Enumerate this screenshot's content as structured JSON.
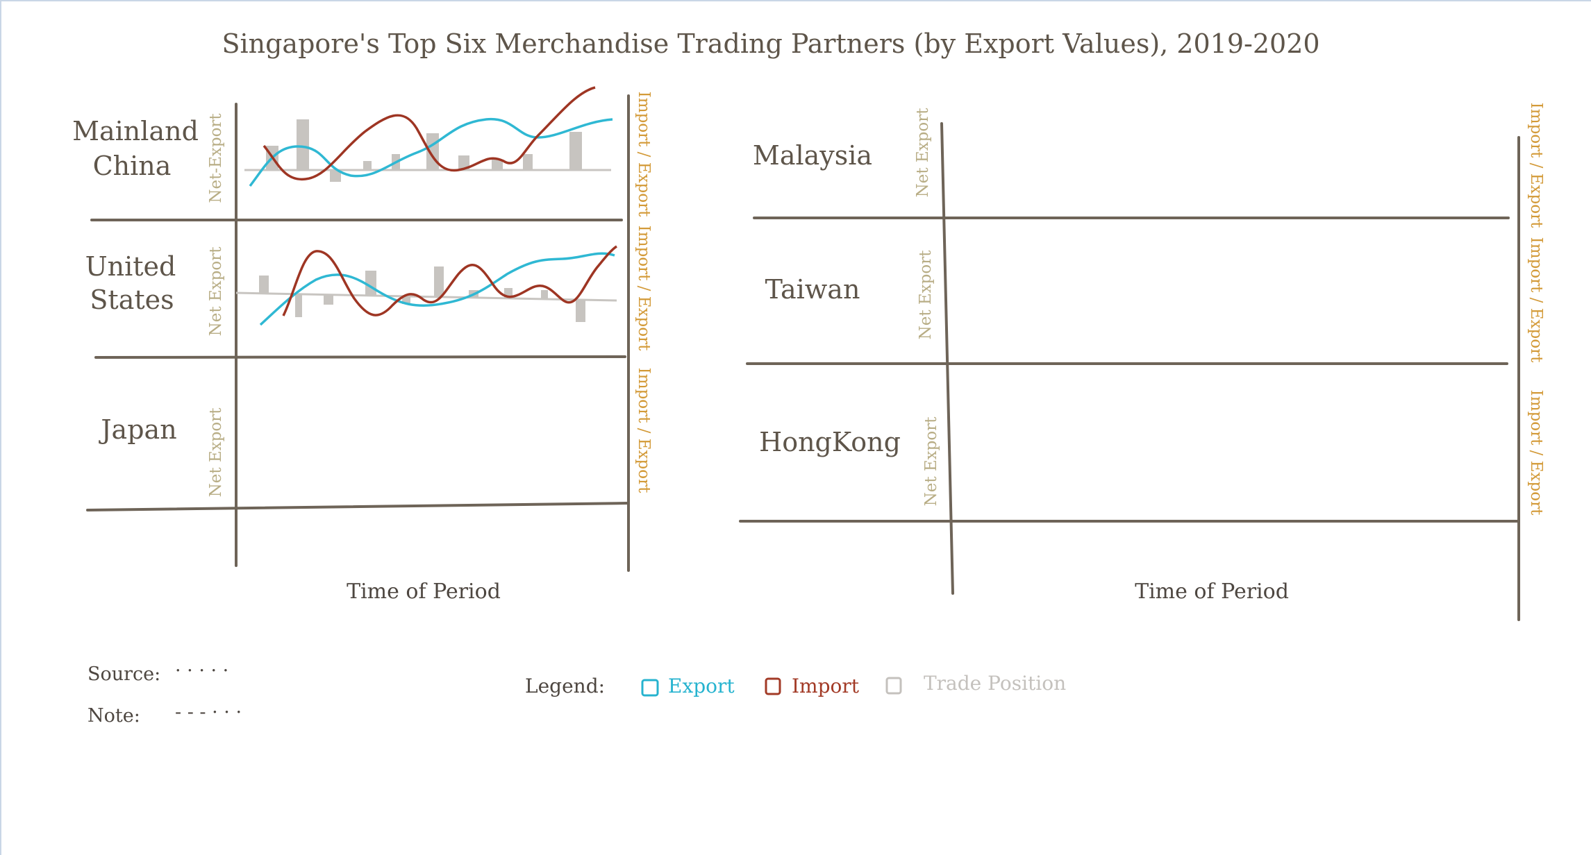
{
  "title": "Singapore's Top Six Merchandise Trading Partners (by Export Values), 2019-2020",
  "left_panel": {
    "regions": [
      {
        "lines": [
          "Mainland",
          "China"
        ],
        "net_label": "Net-Export",
        "right_label": "Import / Export"
      },
      {
        "lines": [
          "United",
          "States"
        ],
        "net_label": "Net Export",
        "right_label": "Import / Export"
      },
      {
        "lines": [
          "Japan"
        ],
        "net_label": "Net Export",
        "right_label": "Import / Export"
      }
    ],
    "x_axis_label": "Time of Period"
  },
  "right_panel": {
    "regions": [
      {
        "lines": [
          "Malaysia"
        ],
        "net_label": "Net Export",
        "right_label": "Import / Export"
      },
      {
        "lines": [
          "Taiwan"
        ],
        "net_label": "Net Export",
        "right_label": "Import / Export"
      },
      {
        "lines": [
          "HongKong"
        ],
        "net_label": "Net Export",
        "right_label": "Import / Export"
      }
    ],
    "x_axis_label": "Time of Period"
  },
  "footer": {
    "source_label": "Source:",
    "source_value": "· · · · ·",
    "note_label": "Note:",
    "note_value": "- - - · · ·"
  },
  "legend": {
    "label": "Legend:",
    "items": [
      {
        "name": "Export",
        "color": "#26b3cf"
      },
      {
        "name": "Import",
        "color": "#a23a26"
      },
      {
        "name": "Trade Position",
        "color": "#c4c1bd"
      }
    ]
  },
  "colors": {
    "frame": "#6e6458",
    "export": "#2fb8d3",
    "import": "#9e3523",
    "trade_position": "#c7c4c0",
    "net_label": "#b8ad85",
    "import_export_label": "#d39a38"
  }
}
